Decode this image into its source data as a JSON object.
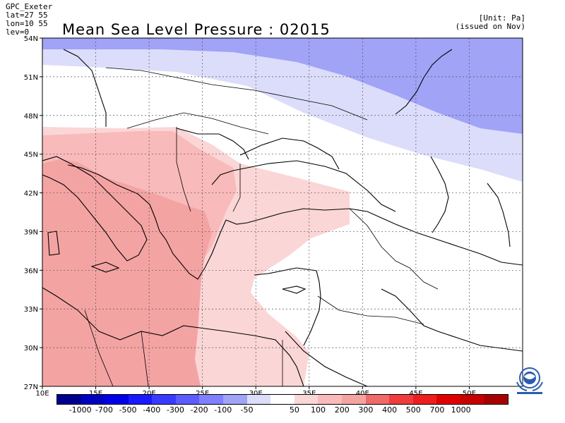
{
  "header": {
    "meta_left": [
      "GPC_Exeter",
      "lat=27 55",
      "lon=10 55",
      "lev=0"
    ],
    "unit": "[Unit: Pa]",
    "issued": "(issued on Nov)",
    "title": "Mean Sea Level Pressure : 02015"
  },
  "map": {
    "lat_labels": [
      "54N",
      "51N",
      "48N",
      "45N",
      "42N",
      "39N",
      "36N",
      "33N",
      "30N",
      "27N"
    ],
    "lon_labels": [
      "10E",
      "15E",
      "20E",
      "25E",
      "30E",
      "35E",
      "40E",
      "45E",
      "50E"
    ],
    "colors": {
      "dark_blue_band": "#a0a3f6",
      "light_blue_band": "#dcddfa",
      "light_pink": "#fbd6d6",
      "medium_pink": "#f8baba",
      "salmon": "#f4a3a3",
      "land_outline": "#000000",
      "grid": "#555555"
    }
  },
  "colorbar": {
    "colors": [
      "#00008f",
      "#0000c0",
      "#0000e8",
      "#1a1aff",
      "#3a3aff",
      "#5c5cff",
      "#8080ff",
      "#a0a3f6",
      "#dcddfa",
      "#ffffff",
      "#fbd6d6",
      "#f8baba",
      "#f4a3a3",
      "#f06a6a",
      "#f03c3c",
      "#ee1e1e",
      "#e00000",
      "#c80000",
      "#a80000"
    ],
    "labels": [
      "-1000",
      "-700",
      "-500",
      "-400",
      "-300",
      "-200",
      "-100",
      "-50",
      "50",
      "100",
      "200",
      "300",
      "400",
      "500",
      "700",
      "1000"
    ]
  }
}
